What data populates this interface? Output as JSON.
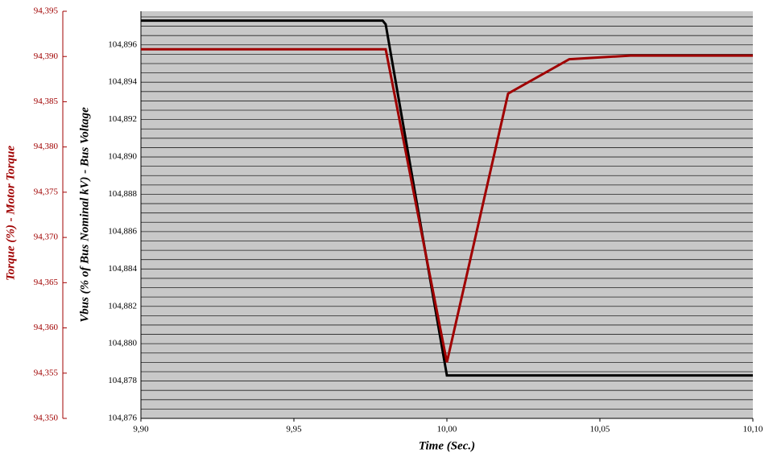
{
  "chart_data": {
    "type": "line",
    "x_label": "Time (Sec.)",
    "y_label": "Vbus (% of Bus Nominal kV) - Bus Voltage",
    "y2_label": "Torque (%) - Motor Torque",
    "xlim": [
      9.9,
      10.1
    ],
    "xticks": [
      {
        "value": 9.9,
        "label": "9,90"
      },
      {
        "value": 9.95,
        "label": "9,95"
      },
      {
        "value": 10.0,
        "label": "10,00"
      },
      {
        "value": 10.05,
        "label": "10,05"
      },
      {
        "value": 10.1,
        "label": "10,10"
      }
    ],
    "ylim": [
      104.876,
      104.8978
    ],
    "yticks": [
      {
        "value": 104.876,
        "label": "104,876"
      },
      {
        "value": 104.878,
        "label": "104,878"
      },
      {
        "value": 104.88,
        "label": "104,880"
      },
      {
        "value": 104.882,
        "label": "104,882"
      },
      {
        "value": 104.884,
        "label": "104,884"
      },
      {
        "value": 104.886,
        "label": "104,886"
      },
      {
        "value": 104.888,
        "label": "104,888"
      },
      {
        "value": 104.89,
        "label": "104,890"
      },
      {
        "value": 104.892,
        "label": "104,892"
      },
      {
        "value": 104.894,
        "label": "104,894"
      },
      {
        "value": 104.896,
        "label": "104,896"
      }
    ],
    "y2lim": [
      94.35,
      94.395
    ],
    "y2ticks": [
      {
        "value": 94.35,
        "label": "94,350"
      },
      {
        "value": 94.355,
        "label": "94,355"
      },
      {
        "value": 94.36,
        "label": "94,360"
      },
      {
        "value": 94.365,
        "label": "94,365"
      },
      {
        "value": 94.37,
        "label": "94,370"
      },
      {
        "value": 94.375,
        "label": "94,375"
      },
      {
        "value": 94.38,
        "label": "94,380"
      },
      {
        "value": 94.385,
        "label": "94,385"
      },
      {
        "value": 94.39,
        "label": "94,390"
      },
      {
        "value": 94.395,
        "label": "94,395"
      }
    ],
    "grid": true,
    "series": [
      {
        "color": "#000000",
        "x": [
          9.9,
          9.979,
          9.98,
          10.0,
          10.1
        ],
        "values": [
          104.8973,
          104.8973,
          104.8971,
          104.8783,
          104.8783
        ]
      },
      {
        "color": "#a00000",
        "axis": "y2",
        "x": [
          9.9,
          9.98,
          10.0,
          10.02,
          10.04,
          10.06,
          10.1
        ],
        "values": [
          94.3908,
          94.3908,
          94.3562,
          94.3859,
          94.3897,
          94.3901,
          94.3901
        ]
      }
    ]
  }
}
